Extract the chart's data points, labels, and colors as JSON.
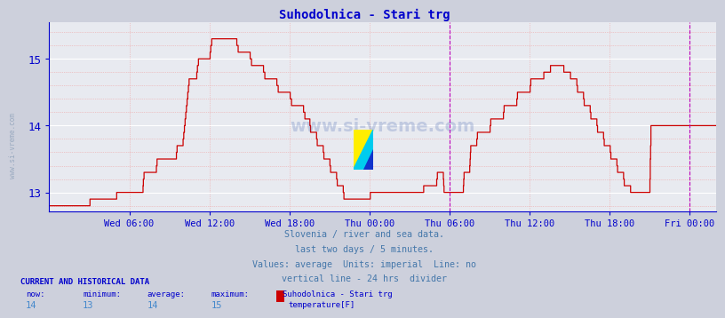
{
  "title": "Suhodolnica - Stari trg",
  "bg_color": "#cdd0dc",
  "plot_bg_color": "#e8eaf0",
  "grid_color_major": "#ffffff",
  "grid_color_minor": "#f0a0a0",
  "line_color": "#cc0000",
  "axis_color": "#0000cc",
  "text_color": "#4477aa",
  "title_color": "#0000cc",
  "yticks": [
    13,
    14,
    15
  ],
  "vline_color": "#bb00bb",
  "info_lines": [
    "Slovenia / river and sea data.",
    "last two days / 5 minutes.",
    "Values: average  Units: imperial  Line: no",
    "vertical line - 24 hrs  divider"
  ],
  "bottom_header": "CURRENT AND HISTORICAL DATA",
  "bottom_labels": [
    "now:",
    "minimum:",
    "average:",
    "maximum:",
    "Suhodolnica - Stari trg"
  ],
  "bottom_values": [
    "14",
    "13",
    "14",
    "15"
  ],
  "legend_label": "temperature[F]",
  "legend_color": "#cc0000",
  "watermark": "www.si-vreme.com",
  "x_tick_labels": [
    "Wed 06:00",
    "Wed 12:00",
    "Wed 18:00",
    "Thu 00:00",
    "Thu 06:00",
    "Thu 12:00",
    "Thu 18:00",
    "Fri 00:00"
  ],
  "x_tick_hours": [
    6,
    12,
    18,
    24,
    30,
    36,
    42,
    48
  ],
  "xlim": [
    0,
    50
  ],
  "ylim_low": 12.72,
  "ylim_high": 15.55,
  "temp_profile": [
    [
      0,
      12.8
    ],
    [
      3,
      12.8
    ],
    [
      3.1,
      12.9
    ],
    [
      5,
      12.9
    ],
    [
      5.1,
      13.0
    ],
    [
      7,
      13.0
    ],
    [
      7.1,
      13.3
    ],
    [
      8,
      13.3
    ],
    [
      8.1,
      13.5
    ],
    [
      9,
      13.5
    ],
    [
      9.5,
      13.5
    ],
    [
      9.6,
      13.7
    ],
    [
      10,
      13.7
    ],
    [
      10.5,
      14.7
    ],
    [
      11,
      14.7
    ],
    [
      11.2,
      15.0
    ],
    [
      12,
      15.0
    ],
    [
      12.2,
      15.3
    ],
    [
      14,
      15.3
    ],
    [
      14.2,
      15.1
    ],
    [
      15,
      15.1
    ],
    [
      15.2,
      14.9
    ],
    [
      16,
      14.9
    ],
    [
      16.2,
      14.7
    ],
    [
      17,
      14.7
    ],
    [
      17.2,
      14.5
    ],
    [
      18,
      14.5
    ],
    [
      18.2,
      14.3
    ],
    [
      19,
      14.3
    ],
    [
      19.2,
      14.1
    ],
    [
      19.5,
      14.1
    ],
    [
      19.6,
      13.9
    ],
    [
      20,
      13.9
    ],
    [
      20.1,
      13.7
    ],
    [
      20.5,
      13.7
    ],
    [
      20.6,
      13.5
    ],
    [
      21,
      13.5
    ],
    [
      21.1,
      13.3
    ],
    [
      21.5,
      13.3
    ],
    [
      21.6,
      13.1
    ],
    [
      22,
      13.1
    ],
    [
      22.1,
      12.9
    ],
    [
      24,
      12.9
    ],
    [
      24.1,
      13.0
    ],
    [
      26,
      13.0
    ],
    [
      26.5,
      13.0
    ],
    [
      28,
      13.0
    ],
    [
      28.1,
      13.1
    ],
    [
      29,
      13.1
    ],
    [
      29.1,
      13.3
    ],
    [
      29.5,
      13.3
    ],
    [
      29.6,
      13.0
    ],
    [
      31,
      13.0
    ],
    [
      31.1,
      13.3
    ],
    [
      31.5,
      13.3
    ],
    [
      31.6,
      13.7
    ],
    [
      32,
      13.7
    ],
    [
      32.1,
      13.9
    ],
    [
      33,
      13.9
    ],
    [
      33.1,
      14.1
    ],
    [
      34,
      14.1
    ],
    [
      34.1,
      14.3
    ],
    [
      35,
      14.3
    ],
    [
      35.1,
      14.5
    ],
    [
      36,
      14.5
    ],
    [
      36.1,
      14.7
    ],
    [
      37,
      14.7
    ],
    [
      37.1,
      14.8
    ],
    [
      37.5,
      14.8
    ],
    [
      37.6,
      14.9
    ],
    [
      38.5,
      14.9
    ],
    [
      38.6,
      14.8
    ],
    [
      39,
      14.8
    ],
    [
      39.1,
      14.7
    ],
    [
      39.5,
      14.7
    ],
    [
      39.6,
      14.5
    ],
    [
      40,
      14.5
    ],
    [
      40.1,
      14.3
    ],
    [
      40.5,
      14.3
    ],
    [
      40.6,
      14.1
    ],
    [
      41,
      14.1
    ],
    [
      41.1,
      13.9
    ],
    [
      41.5,
      13.9
    ],
    [
      41.6,
      13.7
    ],
    [
      42,
      13.7
    ],
    [
      42.1,
      13.5
    ],
    [
      42.5,
      13.5
    ],
    [
      42.6,
      13.3
    ],
    [
      43,
      13.3
    ],
    [
      43.1,
      13.1
    ],
    [
      43.5,
      13.1
    ],
    [
      43.6,
      13.0
    ],
    [
      45,
      13.0
    ],
    [
      45.1,
      14.0
    ],
    [
      48,
      14.0
    ],
    [
      48.1,
      14.0
    ],
    [
      50,
      14.0
    ]
  ],
  "vline_x": 30,
  "vline2_x": 48
}
